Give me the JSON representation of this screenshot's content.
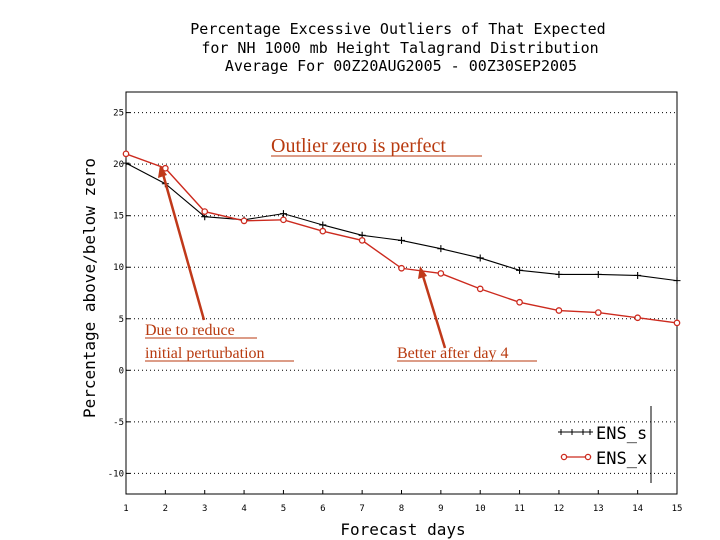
{
  "chart_data": {
    "type": "line",
    "title": [
      "Percentage Excessive Outliers of That Expected",
      "for NH 1000 mb Height Talagrand Distribution",
      "Average For 00Z20AUG2005 - 00Z30SEP2005"
    ],
    "xlabel": "Forecast days",
    "ylabel": "Percentage above/below zero",
    "x": [
      1,
      2,
      3,
      4,
      5,
      6,
      7,
      8,
      9,
      10,
      11,
      12,
      13,
      14,
      15
    ],
    "x_ticks": [
      "1",
      "2",
      "3",
      "4",
      "5",
      "6",
      "7",
      "8",
      "9",
      "10",
      "11",
      "12",
      "13",
      "14",
      "15"
    ],
    "y_ticks": [
      "-10",
      "-5",
      "0",
      "5",
      "10",
      "15",
      "20",
      "25"
    ],
    "xlim": [
      1,
      15
    ],
    "ylim": [
      -12,
      27
    ],
    "grid": true,
    "legend_position": "bottom-right",
    "series": [
      {
        "name": "ENS_s",
        "color": "#000000",
        "marker": "plus",
        "values": [
          20.1,
          18.1,
          14.9,
          14.6,
          15.2,
          14.1,
          13.1,
          12.6,
          11.8,
          10.9,
          9.7,
          9.3,
          9.3,
          9.2,
          8.7
        ]
      },
      {
        "name": "ENS_x",
        "color": "#cc2a1e",
        "marker": "circle",
        "values": [
          21.0,
          19.6,
          15.4,
          14.5,
          14.6,
          13.5,
          12.6,
          9.9,
          9.4,
          7.9,
          6.6,
          5.8,
          5.6,
          5.1,
          4.6
        ]
      }
    ],
    "annotations": [
      {
        "text": "Outlier zero is perfect"
      },
      {
        "text": "Due to reduce",
        "text2": "initial perturbation"
      },
      {
        "text": "Better after day 4"
      }
    ]
  }
}
